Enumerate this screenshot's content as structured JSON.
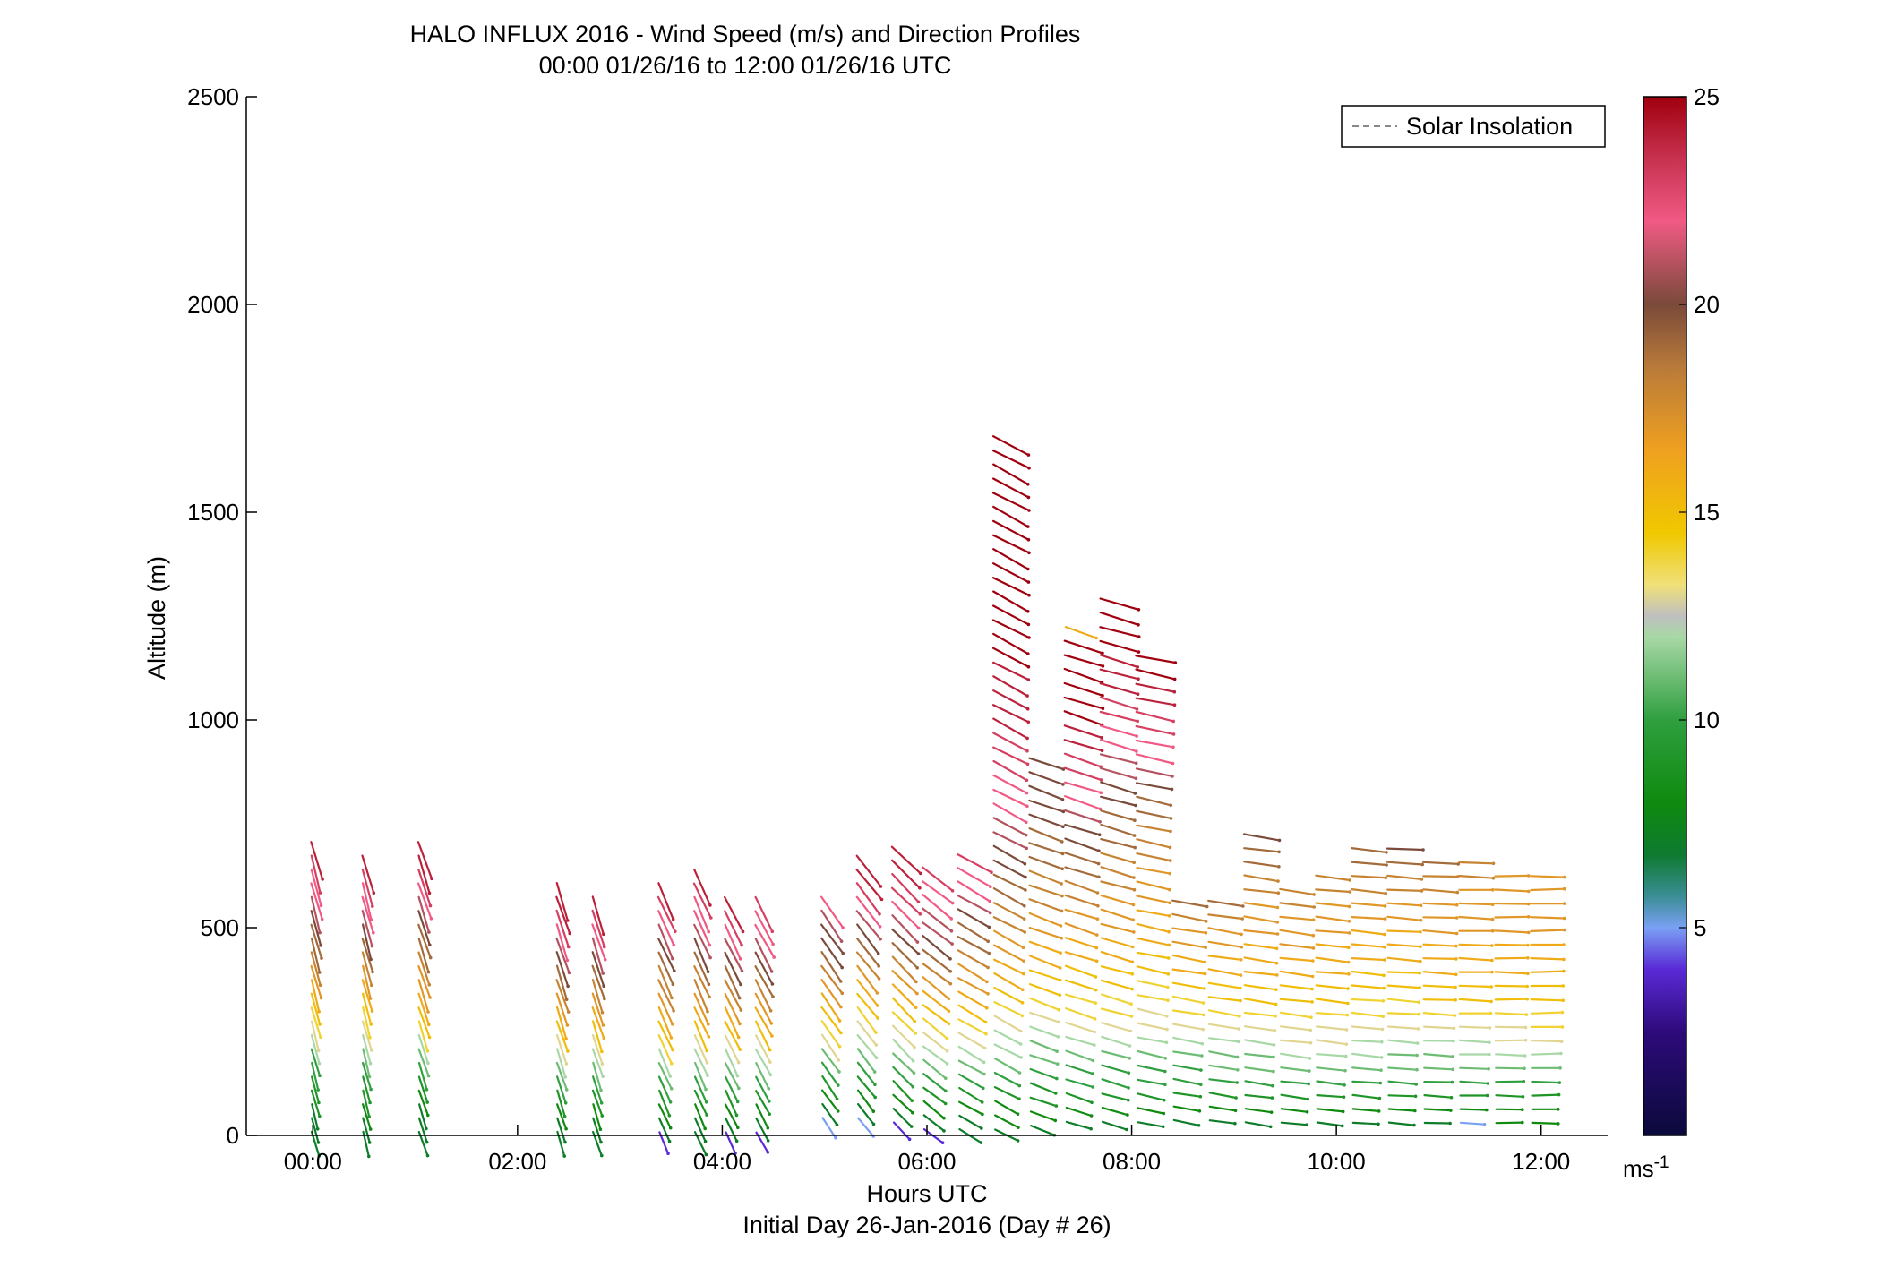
{
  "chart_data": {
    "type": "scatter",
    "title": "HALO INFLUX 2016 - Wind Speed (m/s) and Direction Profiles",
    "subtitle": "00:00 01/26/16 to 12:00 01/26/16  UTC",
    "xlabel": "Hours UTC",
    "xlabel2": "Initial Day 26-Jan-2016 (Day # 26)",
    "ylabel": "Altitude (m)",
    "xlim": [
      -0.65,
      12.65
    ],
    "ylim": [
      0,
      2500
    ],
    "x_ticks": [
      {
        "value": 0,
        "label": "00:00"
      },
      {
        "value": 2,
        "label": "02:00"
      },
      {
        "value": 4,
        "label": "04:00"
      },
      {
        "value": 6,
        "label": "06:00"
      },
      {
        "value": 8,
        "label": "08:00"
      },
      {
        "value": 10,
        "label": "10:00"
      },
      {
        "value": 12,
        "label": "12:00"
      }
    ],
    "y_ticks": [
      {
        "value": 0,
        "label": "0"
      },
      {
        "value": 500,
        "label": "500"
      },
      {
        "value": 1000,
        "label": "1000"
      },
      {
        "value": 1500,
        "label": "1500"
      },
      {
        "value": 2000,
        "label": "2000"
      },
      {
        "value": 2500,
        "label": "2500"
      }
    ],
    "legend": {
      "entries": [
        "Solar Insolation"
      ],
      "position": "top-right"
    },
    "colorbar": {
      "range": [
        0,
        25
      ],
      "ticks": [
        {
          "value": 5,
          "label": "5"
        },
        {
          "value": 10,
          "label": "10"
        },
        {
          "value": 15,
          "label": "15"
        },
        {
          "value": 20,
          "label": "20"
        },
        {
          "value": 25,
          "label": "25"
        }
      ],
      "unit_base": "ms",
      "unit_exp": "-1",
      "colormap": [
        [
          0.0,
          "#0a0a3a"
        ],
        [
          0.1,
          "#2e0a7a"
        ],
        [
          0.16,
          "#5a2ad6"
        ],
        [
          0.2,
          "#7aa0f4"
        ],
        [
          0.23,
          "#3b8e96"
        ],
        [
          0.27,
          "#0e7a30"
        ],
        [
          0.32,
          "#0f8a0f"
        ],
        [
          0.4,
          "#2f9f3f"
        ],
        [
          0.48,
          "#a8d8a6"
        ],
        [
          0.5,
          "#bfbfbf"
        ],
        [
          0.53,
          "#f0e07a"
        ],
        [
          0.58,
          "#f0c800"
        ],
        [
          0.66,
          "#efa020"
        ],
        [
          0.74,
          "#b87a3a"
        ],
        [
          0.8,
          "#7a4a3a"
        ],
        [
          0.88,
          "#f05a84"
        ],
        [
          0.94,
          "#c83250"
        ],
        [
          1.0,
          "#a0000e"
        ]
      ]
    },
    "profiles": [
      {
        "t": 0.0,
        "levels": 22,
        "base": 0,
        "dz": 33,
        "angle": -75,
        "speeds": [
          7,
          7,
          7,
          9,
          9,
          10,
          10,
          12,
          13,
          14,
          15,
          16,
          17,
          18,
          19,
          19,
          20,
          21,
          22,
          22,
          23,
          24
        ]
      },
      {
        "t": 0.5,
        "levels": 21,
        "base": 0,
        "dz": 33,
        "angle": -75,
        "speeds": [
          7,
          7,
          8,
          9,
          9,
          10,
          11,
          12,
          13,
          14,
          15,
          16,
          17,
          18,
          19,
          20,
          21,
          22,
          22,
          23,
          24
        ]
      },
      {
        "t": 1.05,
        "levels": 22,
        "base": 0,
        "dz": 33,
        "angle": -72,
        "speeds": [
          7,
          7,
          7,
          8,
          9,
          10,
          11,
          12,
          14,
          15,
          16,
          17,
          17,
          18,
          19,
          19,
          20,
          21,
          22,
          23,
          24,
          24
        ]
      },
      {
        "t": 2.4,
        "levels": 19,
        "base": 0,
        "dz": 33,
        "angle": -72,
        "speeds": [
          7,
          7,
          8,
          9,
          10,
          11,
          12,
          13,
          15,
          16,
          17,
          18,
          19,
          20,
          21,
          22,
          23,
          24,
          24
        ]
      },
      {
        "t": 2.75,
        "levels": 18,
        "base": 0,
        "dz": 33,
        "angle": -72,
        "speeds": [
          7,
          7,
          8,
          9,
          10,
          11,
          12,
          13,
          15,
          16,
          17,
          18,
          19,
          20,
          21,
          22,
          23,
          24
        ]
      },
      {
        "t": 3.4,
        "levels": 19,
        "base": 0,
        "dz": 33,
        "angle": -66,
        "speeds": [
          4,
          7,
          8,
          9,
          10,
          11,
          12,
          14,
          15,
          16,
          17,
          18,
          18,
          19,
          20,
          21,
          22,
          23,
          24
        ]
      },
      {
        "t": 3.75,
        "levels": 20,
        "base": 0,
        "dz": 33,
        "angle": -66,
        "speeds": [
          7,
          7,
          8,
          9,
          10,
          11,
          12,
          13,
          15,
          16,
          17,
          18,
          18,
          19,
          20,
          21,
          22,
          22,
          23,
          24
        ]
      },
      {
        "t": 4.05,
        "levels": 18,
        "base": 0,
        "dz": 33,
        "angle": -64,
        "speeds": [
          4,
          7,
          8,
          9,
          10,
          11,
          12,
          13,
          15,
          16,
          17,
          18,
          19,
          20,
          21,
          22,
          23,
          24
        ]
      },
      {
        "t": 4.35,
        "levels": 18,
        "base": 0,
        "dz": 33,
        "angle": -62,
        "speeds": [
          4,
          7,
          8,
          9,
          10,
          11,
          12,
          13,
          15,
          16,
          17,
          18,
          19,
          20,
          21,
          22,
          22,
          23
        ]
      },
      {
        "t": 5.0,
        "levels": 17,
        "base": 35,
        "dz": 33,
        "angle": -55,
        "speeds": [
          5,
          7,
          8,
          9,
          10,
          11,
          13,
          14,
          15,
          16,
          17,
          18,
          19,
          20,
          20,
          21,
          22
        ]
      },
      {
        "t": 5.35,
        "levels": 20,
        "base": 35,
        "dz": 33,
        "angle": -52,
        "speeds": [
          5,
          7,
          8,
          9,
          10,
          11,
          12,
          13,
          14,
          15,
          16,
          17,
          18,
          19,
          20,
          21,
          22,
          23,
          24,
          24
        ]
      },
      {
        "t": 5.7,
        "levels": 21,
        "base": 25,
        "dz": 33,
        "angle": -45,
        "speeds": [
          4,
          7,
          8,
          9,
          10,
          11,
          12,
          13,
          14,
          15,
          16,
          17,
          18,
          19,
          20,
          21,
          22,
          23,
          23,
          24,
          24
        ]
      },
      {
        "t": 6.0,
        "levels": 20,
        "base": 10,
        "dz": 33,
        "angle": -38,
        "speeds": [
          4,
          7,
          8,
          9,
          10,
          11,
          12,
          13,
          14,
          15,
          16,
          17,
          18,
          19,
          20,
          21,
          21,
          22,
          22,
          23
        ]
      },
      {
        "t": 6.35,
        "levels": 21,
        "base": 10,
        "dz": 33,
        "angle": -30,
        "speeds": [
          7,
          7,
          8,
          9,
          10,
          11,
          12,
          13,
          14,
          15,
          16,
          17,
          17,
          18,
          19,
          19,
          20,
          21,
          22,
          22,
          23
        ]
      },
      {
        "t": 6.7,
        "levels": 50,
        "base": 10,
        "dz": 34,
        "angle": -28,
        "speeds": [
          7,
          8,
          8,
          9,
          10,
          11,
          12,
          12,
          13,
          14,
          15,
          16,
          16,
          17,
          17,
          18,
          18,
          19,
          19,
          20,
          20,
          21,
          21,
          22,
          22,
          22,
          23,
          23,
          23,
          24,
          24,
          24,
          24,
          24,
          25,
          25,
          25,
          25,
          25,
          25,
          25,
          25,
          25,
          25,
          25,
          25,
          25,
          25,
          25,
          25
        ]
      },
      {
        "t": 7.05,
        "levels": 27,
        "base": 20,
        "dz": 34,
        "angle": -20,
        "speeds": [
          7,
          8,
          9,
          9,
          10,
          11,
          11,
          12,
          13,
          14,
          15,
          15,
          16,
          16,
          17,
          17,
          18,
          18,
          18,
          19,
          19,
          19,
          20,
          20,
          20,
          20,
          20
        ]
      },
      {
        "t": 7.4,
        "levels": 36,
        "base": 30,
        "dz": 34,
        "angle": -18,
        "speeds": [
          7,
          8,
          9,
          10,
          10,
          11,
          12,
          13,
          14,
          14,
          15,
          15,
          16,
          16,
          17,
          17,
          18,
          18,
          19,
          19,
          20,
          20,
          21,
          22,
          22,
          23,
          23,
          24,
          24,
          25,
          25,
          25,
          25,
          25,
          25,
          16
        ]
      },
      {
        "t": 7.75,
        "levels": 38,
        "base": 30,
        "dz": 34,
        "angle": -16,
        "speeds": [
          7,
          8,
          9,
          10,
          10,
          11,
          12,
          13,
          14,
          14,
          15,
          15,
          16,
          16,
          17,
          17,
          17,
          18,
          18,
          18,
          19,
          19,
          19,
          20,
          20,
          21,
          21,
          22,
          22,
          23,
          23,
          24,
          24,
          24,
          25,
          25,
          25,
          25
        ]
      },
      {
        "t": 8.1,
        "levels": 34,
        "base": 30,
        "dz": 34,
        "angle": -12,
        "speeds": [
          7,
          8,
          9,
          10,
          10,
          11,
          12,
          13,
          13,
          14,
          14,
          15,
          15,
          16,
          16,
          16,
          17,
          17,
          17,
          18,
          18,
          18,
          19,
          19,
          20,
          21,
          22,
          22,
          23,
          23,
          24,
          24,
          25,
          25
        ]
      },
      {
        "t": 8.45,
        "levels": 17,
        "base": 35,
        "dz": 33,
        "angle": -10,
        "speeds": [
          7,
          8,
          9,
          10,
          10,
          11,
          12,
          13,
          14,
          14,
          15,
          16,
          16,
          17,
          17,
          18,
          19
        ]
      },
      {
        "t": 8.8,
        "levels": 17,
        "base": 35,
        "dz": 33,
        "angle": -9,
        "speeds": [
          7,
          8,
          9,
          10,
          11,
          11,
          12,
          13,
          14,
          15,
          15,
          16,
          16,
          17,
          17,
          18,
          19
        ]
      },
      {
        "t": 9.15,
        "levels": 22,
        "base": 30,
        "dz": 33,
        "angle": -8,
        "speeds": [
          7,
          8,
          9,
          10,
          11,
          11,
          12,
          13,
          14,
          15,
          15,
          16,
          16,
          16,
          17,
          17,
          17,
          18,
          18,
          19,
          19,
          20
        ]
      },
      {
        "t": 9.5,
        "levels": 18,
        "base": 30,
        "dz": 33,
        "angle": -7,
        "speeds": [
          7,
          8,
          9,
          10,
          11,
          12,
          13,
          13,
          14,
          15,
          15,
          16,
          16,
          17,
          17,
          17,
          18,
          18
        ]
      },
      {
        "t": 9.85,
        "levels": 19,
        "base": 30,
        "dz": 33,
        "angle": -6,
        "speeds": [
          7,
          8,
          9,
          10,
          11,
          12,
          13,
          13,
          14,
          15,
          15,
          16,
          16,
          16,
          17,
          17,
          17,
          18,
          18
        ]
      },
      {
        "t": 10.2,
        "levels": 21,
        "base": 30,
        "dz": 33,
        "angle": -5,
        "speeds": [
          7,
          8,
          9,
          10,
          11,
          12,
          12,
          13,
          14,
          14,
          15,
          15,
          16,
          16,
          16,
          17,
          17,
          18,
          18,
          19,
          19
        ]
      },
      {
        "t": 10.55,
        "levels": 21,
        "base": 30,
        "dz": 33,
        "angle": -4,
        "speeds": [
          7,
          8,
          9,
          10,
          11,
          11,
          12,
          13,
          14,
          14,
          15,
          15,
          16,
          16,
          16,
          17,
          17,
          18,
          18,
          19,
          20
        ]
      },
      {
        "t": 10.9,
        "levels": 20,
        "base": 30,
        "dz": 33,
        "angle": -3,
        "speeds": [
          7,
          8,
          9,
          10,
          11,
          11,
          12,
          13,
          14,
          15,
          15,
          16,
          16,
          16,
          17,
          17,
          17,
          18,
          18,
          19
        ]
      },
      {
        "t": 11.25,
        "levels": 20,
        "base": 30,
        "dz": 33,
        "angle": -2,
        "speeds": [
          5,
          8,
          9,
          10,
          11,
          12,
          12,
          13,
          14,
          15,
          15,
          16,
          16,
          16,
          17,
          17,
          17,
          17,
          18,
          18
        ]
      },
      {
        "t": 11.6,
        "levels": 19,
        "base": 30,
        "dz": 33,
        "angle": -1,
        "speeds": [
          8,
          8,
          9,
          10,
          11,
          12,
          13,
          13,
          14,
          15,
          15,
          16,
          16,
          16,
          17,
          17,
          17,
          17,
          17
        ]
      },
      {
        "t": 11.95,
        "levels": 19,
        "base": 30,
        "dz": 33,
        "angle": 0,
        "speeds": [
          8,
          8,
          9,
          10,
          11,
          12,
          13,
          14,
          14,
          15,
          15,
          16,
          16,
          16,
          17,
          17,
          17,
          17,
          17
        ]
      }
    ]
  }
}
